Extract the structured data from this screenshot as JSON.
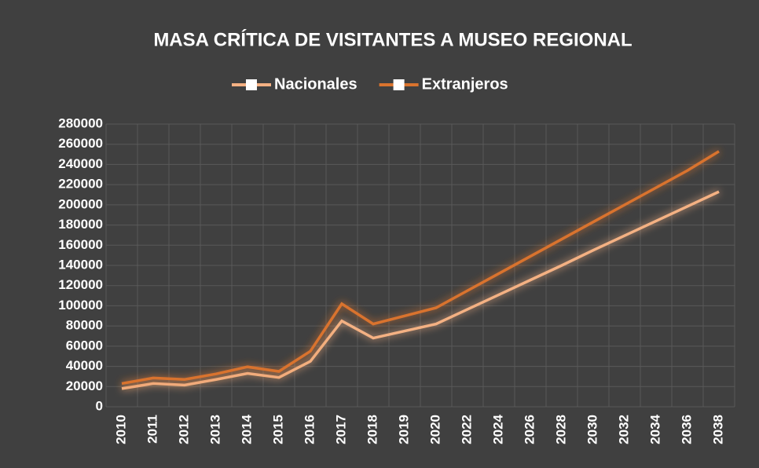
{
  "chart_data": {
    "type": "line",
    "title": "MASA CRÍTICA DE VISITANTES A MUSEO REGIONAL",
    "categories": [
      "2010",
      "2011",
      "2012",
      "2013",
      "2014",
      "2015",
      "2016",
      "2017",
      "2018",
      "2019",
      "2020",
      "2022",
      "2024",
      "2026",
      "2028",
      "2030",
      "2032",
      "2034",
      "2036",
      "2038"
    ],
    "series": [
      {
        "name": "Nacionales",
        "color": "#f4b183",
        "values": [
          18000,
          23000,
          21500,
          27000,
          33000,
          29000,
          45000,
          85000,
          68000,
          75000,
          82000,
          96500,
          111000,
          125500,
          140000,
          155000,
          169500,
          184000,
          198500,
          213000
        ]
      },
      {
        "name": "Extranjeros",
        "color": "#d9732e",
        "values": [
          23000,
          28500,
          27000,
          32500,
          39500,
          35000,
          55000,
          102000,
          82000,
          90000,
          98000,
          115000,
          132000,
          149000,
          166000,
          183000,
          200000,
          217000,
          234000,
          253000
        ]
      }
    ],
    "ylim": [
      0,
      280000
    ],
    "yticks": [
      0,
      20000,
      40000,
      60000,
      80000,
      100000,
      120000,
      140000,
      160000,
      180000,
      200000,
      220000,
      240000,
      260000,
      280000
    ],
    "grid": true,
    "legend": "top"
  }
}
